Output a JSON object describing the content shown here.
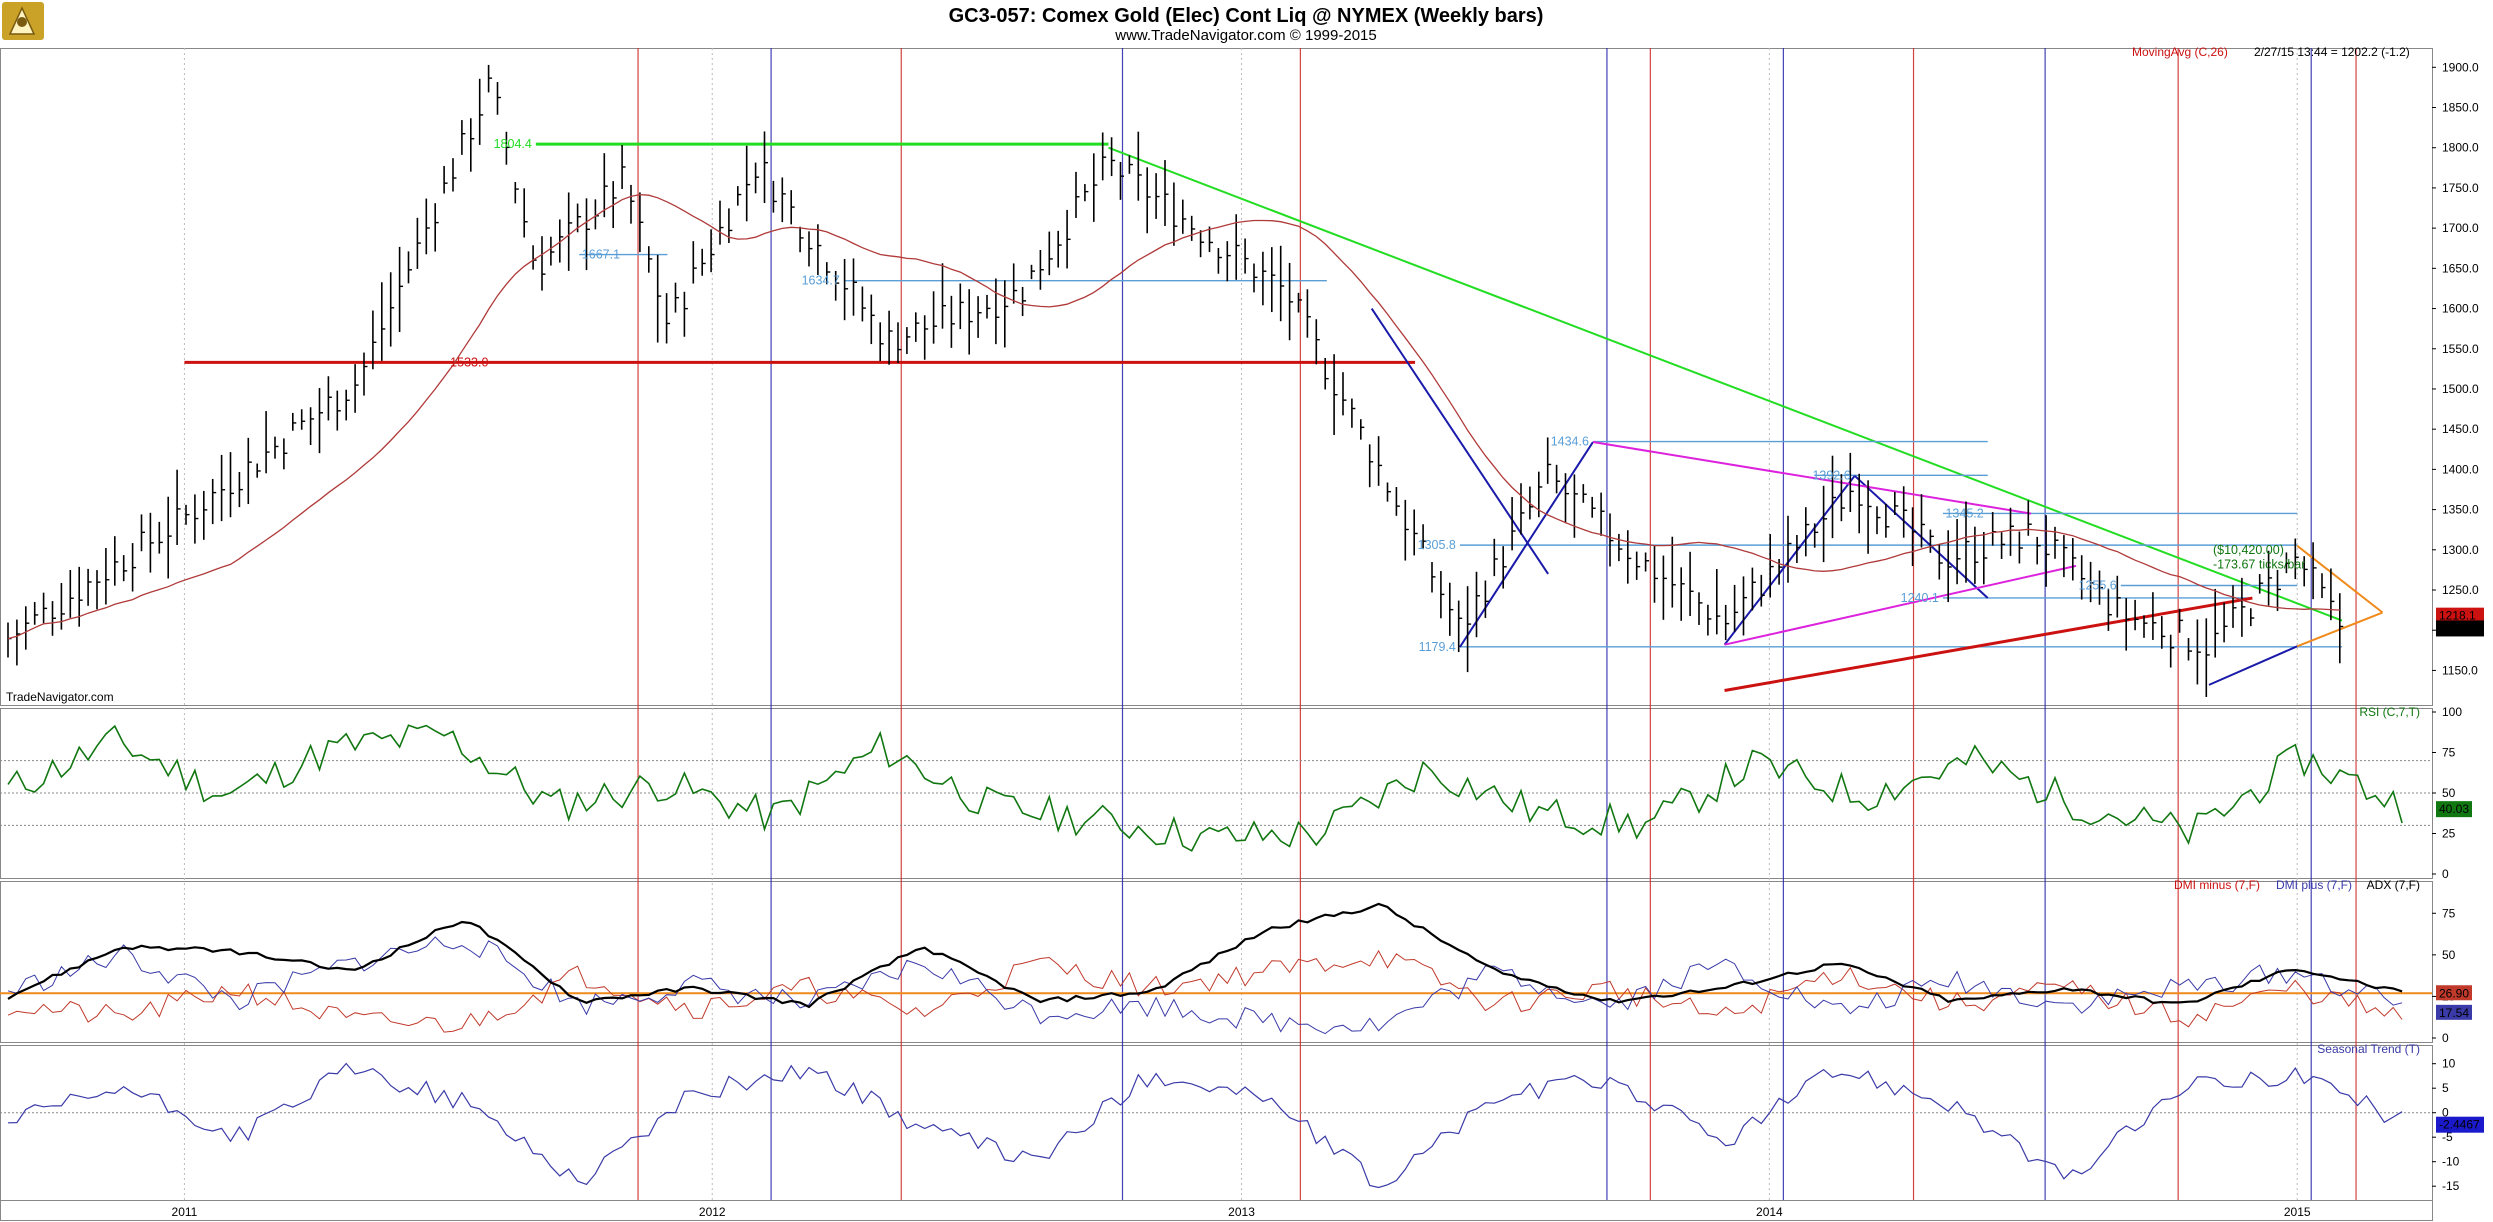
{
  "header": {
    "title": "GC3-057:  Comex Gold (Elec) Cont Liq @ NYMEX  (Weekly bars)",
    "subtitle": "www.TradeNavigator.com © 1999-2015",
    "timestamp": "2/27/15 13:44 = 1202.2 (-1.2)",
    "watermark": "TradeNavigator.com"
  },
  "colors": {
    "price_bars": "#000000",
    "moving_avg": "#b03a3a",
    "green_line": "#22dd22",
    "red_line": "#cc1111",
    "blue_line": "#1a1aaa",
    "magenta_line": "#dd22dd",
    "orange_line": "#f08a1a",
    "fib_lines": "#5a9ed6",
    "rsi": "#117711",
    "dmi_minus": "#c0392b",
    "dmi_plus": "#3a3aa8",
    "adx": "#000000",
    "seasonal": "#3a3aa8"
  },
  "x_axis": {
    "ticks": [
      "2011",
      "2012",
      "2013",
      "2014",
      "2015"
    ]
  },
  "chart_data": [
    {
      "id": "price",
      "type": "line",
      "subtype": "ohlc-bars-weekly",
      "title": "GC3-057:  Comex Gold (Elec) Cont Liq @ NYMEX  (Weekly bars)",
      "indicator_label": "MovingAvg (C,26)",
      "y_ticks": [
        1150,
        1200,
        1250,
        1300,
        1350,
        1400,
        1450,
        1500,
        1550,
        1600,
        1650,
        1700,
        1750,
        1800,
        1850,
        1900
      ],
      "y_tick_labels": [
        "1150.0",
        "1200.0",
        "1250.0",
        "1300.0",
        "1350.0",
        "1400.0",
        "1450.0",
        "1500.0",
        "1550.0",
        "1600.0",
        "1650.0",
        "1700.0",
        "1750.0",
        "1800.0",
        "1850.0",
        "1900.0"
      ],
      "ylim": [
        1107,
        1924
      ],
      "x_dates": [
        "2010-09",
        "2011-01",
        "2011-05",
        "2011-08",
        "2011-09",
        "2011-11",
        "2011-12",
        "2012-02",
        "2012-05",
        "2012-08",
        "2012-10",
        "2012-12",
        "2013-02",
        "2013-04",
        "2013-06",
        "2013-08",
        "2013-10",
        "2013-12",
        "2014-03",
        "2014-05",
        "2014-07",
        "2014-09",
        "2014-11",
        "2015-01",
        "2015-02"
      ],
      "close": [
        1190,
        1340,
        1510,
        1880,
        1650,
        1760,
        1580,
        1780,
        1560,
        1620,
        1780,
        1700,
        1620,
        1420,
        1200,
        1390,
        1290,
        1210,
        1380,
        1290,
        1320,
        1220,
        1180,
        1290,
        1202
      ],
      "annotations": [
        {
          "text": "1804.4",
          "color": "#22dd22"
        },
        {
          "text": "1667.1",
          "color": "#5a9ed6"
        },
        {
          "text": "1634.7",
          "color": "#5a9ed6"
        },
        {
          "text": "1533.0",
          "color": "#cc1111"
        },
        {
          "text": "1434.6",
          "color": "#5a9ed6"
        },
        {
          "text": "1392.6",
          "color": "#5a9ed6"
        },
        {
          "text": "1345.2",
          "color": "#5a9ed6"
        },
        {
          "text": "1305.8",
          "color": "#5a9ed6"
        },
        {
          "text": "1255.6",
          "color": "#5a9ed6"
        },
        {
          "text": "1240.1",
          "color": "#5a9ed6"
        },
        {
          "text": "1179.4",
          "color": "#5a9ed6"
        },
        {
          "text": "($10,420.00)",
          "color": "#117711"
        },
        {
          "text": "-173.67 ticks/bar",
          "color": "#117711"
        }
      ],
      "last_values": [
        {
          "text": "1218.1",
          "bg": "#cc1111"
        },
        {
          "text": "1202.2",
          "bg": "#000000"
        }
      ]
    },
    {
      "id": "rsi",
      "type": "line",
      "title": "RSI (C,7,T)",
      "y_ticks": [
        0,
        25,
        50,
        75,
        100
      ],
      "ylim": [
        0,
        100
      ],
      "ref_lines": [
        30,
        50,
        70
      ],
      "x_dates": [
        "2010-09",
        "2011-02",
        "2011-04",
        "2011-07",
        "2011-09",
        "2011-12",
        "2012-03",
        "2012-05",
        "2012-08",
        "2012-11",
        "2013-01",
        "2013-04",
        "2013-06",
        "2013-08",
        "2013-10",
        "2014-01",
        "2014-03",
        "2014-05",
        "2014-07",
        "2014-09",
        "2014-11",
        "2015-01",
        "2015-02"
      ],
      "values": [
        52,
        82,
        48,
        78,
        86,
        42,
        56,
        35,
        78,
        42,
        33,
        22,
        25,
        65,
        38,
        30,
        68,
        48,
        70,
        42,
        25,
        72,
        40
      ],
      "last_value": "40.03"
    },
    {
      "id": "dmi",
      "type": "line",
      "title": "DMI minus (7,F)  DMI plus (7,F)  ADX (7,F)",
      "y_ticks": [
        0,
        25,
        50,
        75
      ],
      "ylim": [
        0,
        92
      ],
      "ref_lines": [
        26.9
      ],
      "series": [
        {
          "name": "DMI minus (7,F)",
          "values": [
            20,
            12,
            30,
            10,
            8,
            38,
            18,
            30,
            15,
            45,
            30,
            40,
            50,
            20,
            30,
            12,
            40,
            20,
            30,
            12,
            30,
            10
          ]
        },
        {
          "name": "DMI plus (7,F)",
          "values": [
            28,
            50,
            22,
            45,
            60,
            20,
            32,
            20,
            45,
            15,
            20,
            10,
            8,
            40,
            20,
            45,
            15,
            35,
            20,
            30,
            40,
            17.54
          ]
        },
        {
          "name": "ADX (7,F)",
          "values": [
            25,
            55,
            52,
            40,
            72,
            22,
            30,
            20,
            55,
            22,
            28,
            65,
            80,
            40,
            22,
            30,
            45,
            22,
            30,
            20,
            42,
            26
          ]
        }
      ],
      "last_values": [
        "26.90",
        "17.54"
      ]
    },
    {
      "id": "seasonal",
      "type": "line",
      "title": "Seasonal Trend (T)",
      "y_ticks": [
        -15,
        -10,
        -5,
        0,
        5,
        10
      ],
      "ylim": [
        -17,
        13
      ],
      "values": [
        -2,
        5,
        -5,
        9,
        2,
        -14,
        4,
        9,
        -3,
        -10,
        8,
        3,
        -15,
        3,
        7,
        -6,
        9,
        2,
        -14,
        5,
        8,
        -2.4467
      ],
      "last_value": "-2.4467"
    }
  ]
}
